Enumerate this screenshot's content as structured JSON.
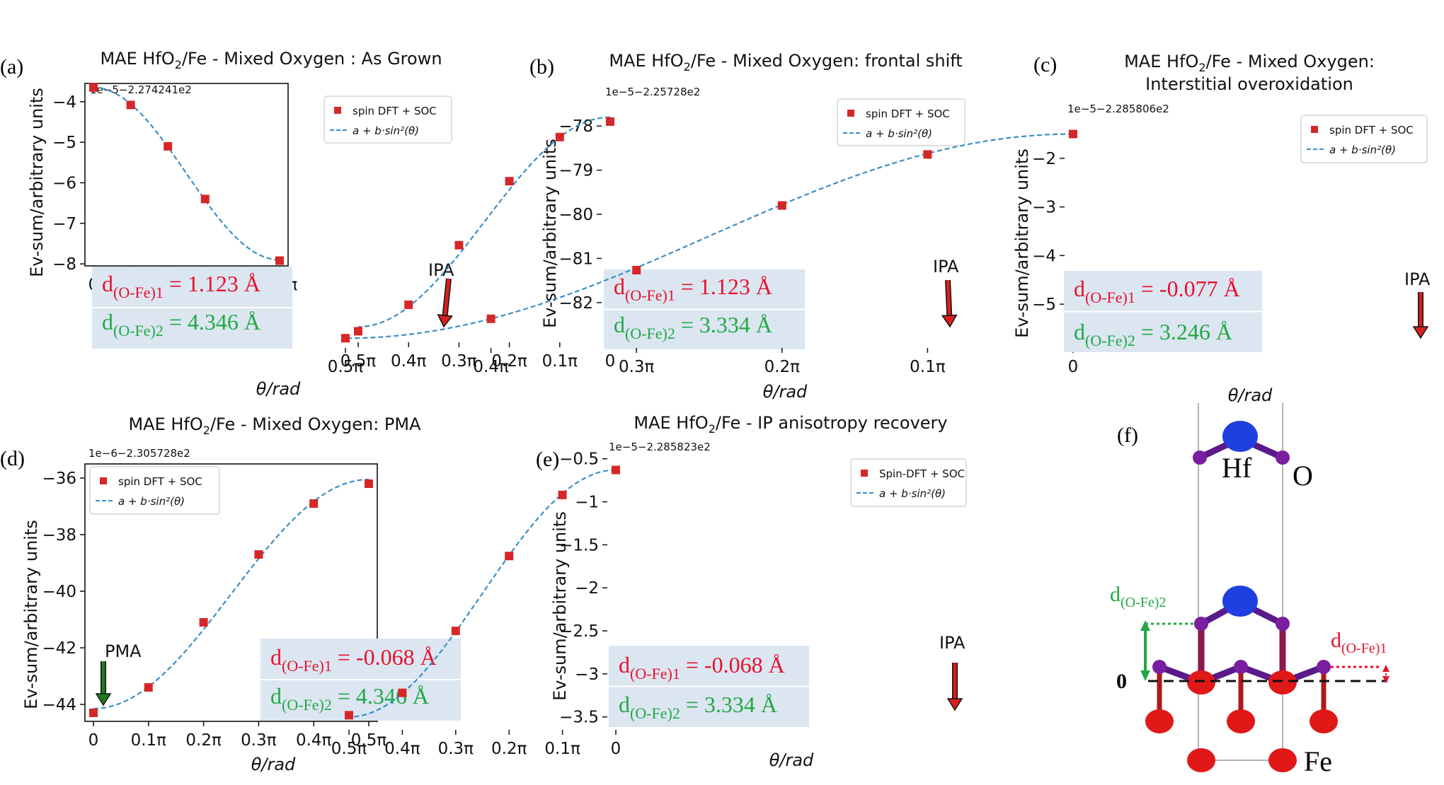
{
  "panels": [
    {
      "letter": "(a)",
      "title_pre": "MAE HfO",
      "title_sub": "2",
      "title_post": "/Fe - Mixed Oxygen : As Grown",
      "title2": "",
      "offset": "1e−5−2.274241e2",
      "legend": [
        "spin DFT + SOC",
        "a + b·sin²(θ)"
      ],
      "xlabel": "θ/rad",
      "ylabel": "Ev-sum/arbitrary units",
      "annotation": "IPA",
      "d1_value": "= 1.123 Å",
      "d2_value": "= 4.346 Å"
    },
    {
      "letter": "(b)",
      "title_pre": "MAE HfO",
      "title_sub": "2",
      "title_post": "/Fe - Mixed Oxygen: frontal shift",
      "title2": "",
      "offset": "1e−5−2.25728e2",
      "legend": [
        "spin DFT + SOC",
        "a + b·sin²(θ)"
      ],
      "xlabel": "θ/rad",
      "ylabel": "Ev-sum/arbitrary units",
      "annotation": "IPA",
      "d1_value": "= 1.123 Å",
      "d2_value": "=  3.334 Å"
    },
    {
      "letter": "(c)",
      "title_pre": "MAE HfO",
      "title_sub": "2",
      "title_post": "/Fe - Mixed Oxygen:",
      "title2": "Interstitial overoxidation",
      "offset": "1e−5−2.285806e2",
      "legend": [
        "spin DFT + SOC",
        "a + b·sin²(θ)"
      ],
      "xlabel": "θ/rad",
      "ylabel": "Ev-sum/arbitrary units",
      "annotation": "IPA",
      "d1_value": "= -0.077 Å",
      "d2_value": "= 3.246 Å"
    },
    {
      "letter": "(d)",
      "title_pre": "MAE HfO",
      "title_sub": "2",
      "title_post": "/Fe - Mixed Oxygen: PMA",
      "title2": "",
      "offset": "1e−6−2.305728e2",
      "legend": [
        "spin DFT + SOC",
        "a + b·sin²(θ)"
      ],
      "xlabel": "θ/rad",
      "ylabel": "Ev-sum/arbitrary units",
      "annotation": "PMA",
      "d1_value": "= -0.068 Å",
      "d2_value": "= 4.346 Å"
    },
    {
      "letter": "(e)",
      "title_pre": "MAE HfO",
      "title_sub": "2",
      "title_post": "/Fe - IP anisotropy recovery",
      "title2": "",
      "offset": "1e−5−2.285823e2",
      "legend": [
        "Spin-DFT + SOC",
        "a + b·sin²(θ)"
      ],
      "xlabel": "θ/rad",
      "ylabel": "Ev-sum/arbitrary units",
      "annotation": "IPA",
      "d1_value": "= -0.068 Å",
      "d2_value": "= 3.334 Å"
    }
  ],
  "d_label": {
    "base": "d",
    "sub1": "(O-Fe)1",
    "sub2": "(O-Fe)2"
  },
  "structure": {
    "letter": "(f)",
    "hf": "Hf",
    "o": "O",
    "fe": "Fe",
    "zero": "0"
  },
  "colors": {
    "point": "#d62728",
    "fit": "#3b8fc4",
    "d1": "#e8112d",
    "d2": "#22a845",
    "box": "#dbe6f1",
    "hf_atom": "#1f3fe0",
    "o_atom": "#7a1fa0",
    "fe_atom": "#e01818",
    "arrow_ipa": "#d62020",
    "arrow_pma": "#1e7a1e"
  },
  "chart_data": [
    {
      "type": "scatter",
      "title": "MAE HfO2/Fe - Mixed Oxygen : As Grown",
      "x": [
        0,
        0.1,
        0.2,
        0.3,
        0.4,
        0.5
      ],
      "x_tick_labels": [
        "0",
        "0.1π",
        "0.2π",
        "0.3π",
        "0.4π",
        "0.5π"
      ],
      "series": [
        {
          "name": "spin DFT + SOC",
          "values": [
            -3.65,
            -4.08,
            -5.1,
            -6.4,
            null,
            -7.92
          ]
        },
        {
          "name": "a + b·sin²(θ)",
          "a": -3.65,
          "b": -4.25
        }
      ],
      "yticks": [
        -4,
        -5,
        -6,
        -7,
        -8
      ],
      "ylim": [
        -8.05,
        -3.55
      ],
      "xlabel": "θ/rad",
      "ylabel": "Ev-sum/arbitrary units",
      "offset": "1e−5−2.274241e2"
    },
    {
      "type": "scatter",
      "title": "MAE HfO2/Fe - Mixed Oxygen: frontal shift",
      "x": [
        0,
        0.1,
        0.2,
        0.3,
        0.4,
        0.5
      ],
      "x_tick_labels": [
        "0",
        "0.1π",
        "0.2π",
        "0.3π",
        "0.4π",
        "0.5π"
      ],
      "series": [
        {
          "name": "spin DFT + SOC",
          "values": [
            -77.9,
            -78.25,
            -79.25,
            -80.7,
            -82.05,
            -82.65
          ]
        },
        {
          "name": "a + b·sin²(θ)",
          "a": -77.8,
          "b": -4.75
        }
      ],
      "yticks": [
        -78,
        -79,
        -80,
        -81,
        -82
      ],
      "ylim": [
        -82.9,
        -77.5
      ],
      "xlabel": "θ/rad",
      "ylabel": "Ev-sum/arbitrary units",
      "offset": "1e−5−2.25728e2"
    },
    {
      "type": "scatter",
      "title": "MAE HfO2/Fe - Mixed Oxygen: Interstitial overoxidation",
      "x": [
        0,
        0.1,
        0.2,
        0.3,
        0.4,
        0.5
      ],
      "x_tick_labels": [
        "0",
        "0.1π",
        "0.2π",
        "0.3π",
        "0.4π",
        "0.5π"
      ],
      "series": [
        {
          "name": "spin DFT + SOC",
          "values": [
            -1.5,
            -1.92,
            -2.97,
            -4.3,
            -5.3,
            -5.7
          ]
        },
        {
          "name": "a + b·sin²(θ)",
          "a": -1.5,
          "b": -4.2
        }
      ],
      "yticks": [
        -2,
        -3,
        -4,
        -5
      ],
      "ylim": [
        -5.9,
        -1.1
      ],
      "xlabel": "θ/rad",
      "ylabel": "Ev-sum/arbitrary units",
      "offset": "1e−5−2.285806e2"
    },
    {
      "type": "scatter",
      "title": "MAE HfO2/Fe - Mixed Oxygen: PMA",
      "x": [
        0,
        0.1,
        0.2,
        0.3,
        0.4,
        0.5
      ],
      "x_tick_labels": [
        "0",
        "0.1π",
        "0.2π",
        "0.3π",
        "0.4π",
        "0.5π"
      ],
      "series": [
        {
          "name": "spin DFT + SOC",
          "values": [
            -44.3,
            -43.4,
            -41.1,
            -38.7,
            -36.9,
            -36.2
          ]
        },
        {
          "name": "a + b·sin²(θ)",
          "a": -44.15,
          "b": 8.1
        }
      ],
      "yticks": [
        -36,
        -38,
        -40,
        -42,
        -44
      ],
      "ylim": [
        -44.6,
        -35.5
      ],
      "xlabel": "θ/rad",
      "ylabel": "Ev-sum/arbitrary units",
      "offset": "1e−6−2.305728e2"
    },
    {
      "type": "scatter",
      "title": "MAE HfO2/Fe - IP anisotropy recovery",
      "x": [
        0,
        0.1,
        0.2,
        0.3,
        0.4,
        0.5
      ],
      "x_tick_labels": [
        "0",
        "0.1π",
        "0.2π",
        "0.3π",
        "0.4π",
        "0.5π"
      ],
      "series": [
        {
          "name": "Spin-DFT + SOC",
          "values": [
            -0.63,
            -0.92,
            -1.63,
            -2.5,
            -3.22,
            -3.48
          ]
        },
        {
          "name": "a + b·sin²(θ)",
          "a": -0.63,
          "b": -2.87
        }
      ],
      "yticks": [
        -0.5,
        -1.0,
        -1.5,
        -2.0,
        -2.5,
        -3.0,
        -3.5
      ],
      "ylim": [
        -3.65,
        -0.42
      ],
      "xlabel": "θ/rad",
      "ylabel": "Ev-sum/arbitrary units",
      "offset": "1e−5−2.285823e2"
    }
  ]
}
